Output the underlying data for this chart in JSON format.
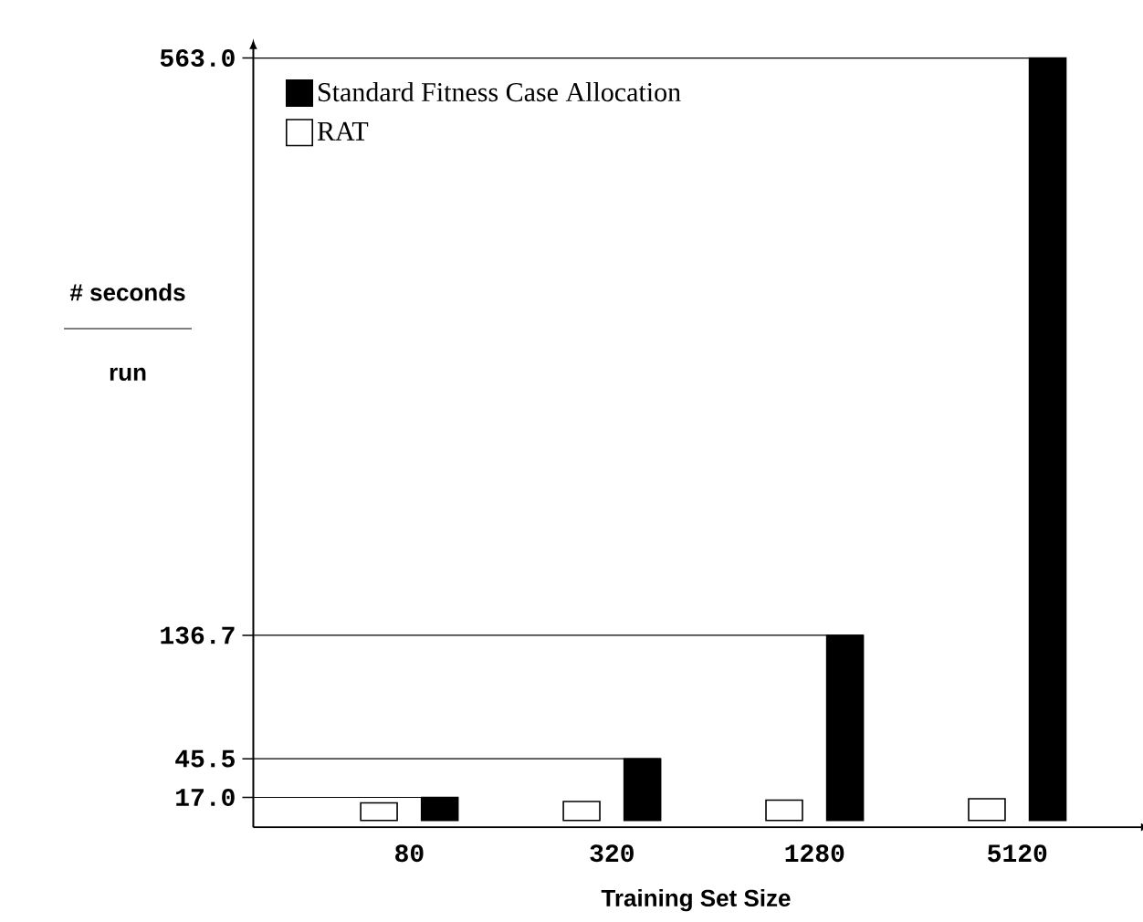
{
  "chart_data": {
    "type": "bar",
    "xlabel": "Training Set Size",
    "ylabel": "# seconds",
    "annotations": [
      "run"
    ],
    "categories": [
      "80",
      "320",
      "1280",
      "5120"
    ],
    "series": [
      {
        "name": "RAT",
        "color": "#ffffff",
        "values": [
          13,
          14,
          15,
          16
        ]
      },
      {
        "name": "Standard Fitness Case Allocation",
        "color": "#000000",
        "values": [
          17.0,
          45.5,
          136.7,
          563.0
        ]
      }
    ],
    "ylim": [
      -5,
      568
    ],
    "yticks": [
      {
        "value": 17.0,
        "label": "17.0"
      },
      {
        "value": 45.5,
        "label": "45.5"
      },
      {
        "value": 136.7,
        "label": "136.7"
      },
      {
        "value": 563.0,
        "label": "563.0"
      }
    ],
    "ref_lines": [
      {
        "axis": "y",
        "value": 17.0
      },
      {
        "axis": "y",
        "value": 45.5
      },
      {
        "axis": "y",
        "value": 136.7
      },
      {
        "axis": "y",
        "value": 563.0
      }
    ],
    "legend": "top left",
    "grid": false
  }
}
